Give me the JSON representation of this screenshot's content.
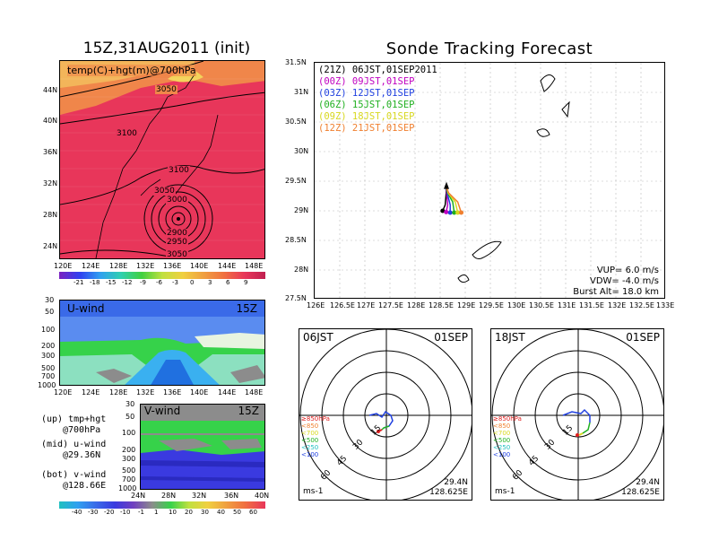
{
  "left_title": "15Z,31AUG2011 (init)",
  "right_title": "Sonde Tracking Forecast",
  "colors": {
    "map_fill": "#e8365a",
    "warm_fill": "#f0864a",
    "cool_fill": "#f3d35a",
    "uwind_bg": "#5a8cf0",
    "uwind_green": "#36d24a",
    "vwind_bg": "#3a3ae0",
    "grey": "#8c8c8c"
  },
  "map_panel": {
    "label": "temp(C)+hgt(m)@700hPa",
    "lat_ticks": [
      "44N",
      "40N",
      "36N",
      "32N",
      "28N",
      "24N"
    ],
    "lon_ticks": [
      "120E",
      "124E",
      "128E",
      "132E",
      "136E",
      "140E",
      "144E",
      "148E"
    ],
    "contours": [
      "3050",
      "3100",
      "3100",
      "3050",
      "3000",
      "2900",
      "2950",
      "3050"
    ],
    "colorbar_labels": [
      "-21",
      "-18",
      "-15",
      "-12",
      "-9",
      "-6",
      "-3",
      "0",
      "3",
      "6",
      "9"
    ]
  },
  "uwind_panel": {
    "label": "U-wind",
    "time": "15Z",
    "levels": [
      "30",
      "50",
      "100",
      "200",
      "300",
      "500",
      "700",
      "1000"
    ],
    "lon_ticks": [
      "120E",
      "124E",
      "128E",
      "132E",
      "136E",
      "140E",
      "144E",
      "148E"
    ]
  },
  "vwind_panel": {
    "label": "V-wind",
    "time": "15Z",
    "levels": [
      "30",
      "50",
      "100",
      "200",
      "300",
      "500",
      "700",
      "1000"
    ],
    "lat_ticks": [
      "24N",
      "28N",
      "32N",
      "36N",
      "40N"
    ],
    "colorbar_labels": [
      "-40",
      "-30",
      "-20",
      "-10",
      "-1",
      "1",
      "10",
      "20",
      "30",
      "40",
      "50",
      "60"
    ]
  },
  "notes": [
    {
      "line1": "(up) tmp+hgt",
      "line2": "@700hPa"
    },
    {
      "line1": "(mid) u-wind",
      "line2": "@29.36N"
    },
    {
      "line1": "(bot) v-wind",
      "line2": "@128.66E"
    }
  ],
  "track_panel": {
    "legend": [
      {
        "text": "(21Z) 06JST,01SEP2011",
        "color": "#000000"
      },
      {
        "text": "(00Z) 09JST,01SEP",
        "color": "#c000c0"
      },
      {
        "text": "(03Z) 12JST,01SEP",
        "color": "#2040e0"
      },
      {
        "text": "(06Z) 15JST,01SEP",
        "color": "#20b020"
      },
      {
        "text": "(09Z) 18JST,01SEP",
        "color": "#d8d820"
      },
      {
        "text": "(12Z) 21JST,01SEP",
        "color": "#f08030"
      }
    ],
    "lat_ticks": [
      "31.5N",
      "31N",
      "30.5N",
      "30N",
      "29.5N",
      "29N",
      "28.5N",
      "28N",
      "27.5N"
    ],
    "lon_ticks": [
      "126E",
      "126.5E",
      "127E",
      "127.5E",
      "128E",
      "128.5E",
      "129E",
      "129.5E",
      "130E",
      "130.5E",
      "131E",
      "131.5E",
      "132E",
      "132.5E",
      "133E"
    ],
    "vup": "VUP= 6.0 m/s",
    "vdw": "VDW= -4.0 m/s",
    "burst": "Burst Alt= 18.0 km"
  },
  "hodo_left": {
    "time": "06JST",
    "date": "01SEP",
    "legend": [
      {
        "text": "≥850hPa",
        "color": "#e02020"
      },
      {
        "text": "<850",
        "color": "#f08030"
      },
      {
        "text": "<700",
        "color": "#d8d820"
      },
      {
        "text": "<500",
        "color": "#20b020"
      },
      {
        "text": "<250",
        "color": "#20c0c0"
      },
      {
        "text": "<100",
        "color": "#2040e0"
      }
    ],
    "ring_labels": [
      "15",
      "30",
      "45",
      "60"
    ],
    "unit": "ms-1",
    "lat": "29.4N",
    "lon": "128.625E"
  },
  "hodo_right": {
    "time": "18JST",
    "date": "01SEP",
    "legend": [
      {
        "text": "≥850hPa",
        "color": "#e02020"
      },
      {
        "text": "<850",
        "color": "#f08030"
      },
      {
        "text": "<700",
        "color": "#d8d820"
      },
      {
        "text": "<500",
        "color": "#20b020"
      },
      {
        "text": "<250",
        "color": "#20c0c0"
      },
      {
        "text": "<100",
        "color": "#2040e0"
      }
    ],
    "ring_labels": [
      "15",
      "30",
      "45",
      "60"
    ],
    "unit": "ms-1",
    "lat": "29.4N",
    "lon": "128.625E"
  },
  "chart_data": [
    {
      "type": "heatmap",
      "title": "15Z,31AUG2011 (init)",
      "subtitle": "temp(C)+hgt(m)@700hPa",
      "x_ticks": [
        "120E",
        "124E",
        "128E",
        "132E",
        "136E",
        "140E",
        "144E",
        "148E"
      ],
      "y_ticks": [
        "44N",
        "40N",
        "36N",
        "32N",
        "28N",
        "24N"
      ],
      "xlim": [
        120,
        150
      ],
      "ylim": [
        22,
        47
      ],
      "contour_labels_m": [
        3050,
        3100,
        3100,
        3050,
        3000,
        2900,
        2950,
        3050
      ],
      "low_center": {
        "lon": 136.5,
        "lat": 27.5
      },
      "colorbar_C": [
        -21,
        -18,
        -15,
        -12,
        -9,
        -6,
        -3,
        0,
        3,
        6,
        9
      ]
    },
    {
      "type": "heatmap",
      "title": "U-wind",
      "x_ticks": [
        "120E",
        "124E",
        "128E",
        "132E",
        "136E",
        "140E",
        "144E",
        "148E"
      ],
      "y_ticks_hPa": [
        30,
        50,
        100,
        200,
        300,
        500,
        700,
        1000
      ]
    },
    {
      "type": "heatmap",
      "title": "V-wind",
      "x_ticks": [
        "24N",
        "28N",
        "32N",
        "36N",
        "40N"
      ],
      "y_ticks_hPa": [
        30,
        50,
        100,
        200,
        300,
        500,
        700,
        1000
      ],
      "colorbar_ms": [
        -40,
        -30,
        -20,
        -10,
        -1,
        1,
        10,
        20,
        30,
        40,
        50,
        60
      ]
    },
    {
      "type": "line",
      "title": "Sonde Tracking Forecast",
      "xlim": [
        126,
        133
      ],
      "ylim": [
        27.5,
        31.5
      ],
      "launch": {
        "lon": 128.625,
        "lat": 29.4
      },
      "series": [
        {
          "name": "(21Z) 06JST,01SEP2011",
          "points": [
            [
              128.62,
              29.3
            ],
            [
              128.6,
              29.1
            ],
            [
              128.55,
              29.0
            ]
          ]
        },
        {
          "name": "(00Z) 09JST,01SEP",
          "points": [
            [
              128.63,
              29.3
            ],
            [
              128.65,
              29.1
            ],
            [
              128.62,
              28.98
            ]
          ]
        },
        {
          "name": "(03Z) 12JST,01SEP",
          "points": [
            [
              128.64,
              29.3
            ],
            [
              128.7,
              29.1
            ],
            [
              128.7,
              28.97
            ]
          ]
        },
        {
          "name": "(06Z) 15JST,01SEP",
          "points": [
            [
              128.65,
              29.3
            ],
            [
              128.75,
              29.15
            ],
            [
              128.78,
              28.97
            ]
          ]
        },
        {
          "name": "(09Z) 18JST,01SEP",
          "points": [
            [
              128.66,
              29.3
            ],
            [
              128.8,
              29.15
            ],
            [
              128.85,
              28.97
            ]
          ]
        },
        {
          "name": "(12Z) 21JST,01SEP",
          "points": [
            [
              128.67,
              29.3
            ],
            [
              128.85,
              29.15
            ],
            [
              128.92,
              28.97
            ]
          ]
        }
      ]
    }
  ]
}
